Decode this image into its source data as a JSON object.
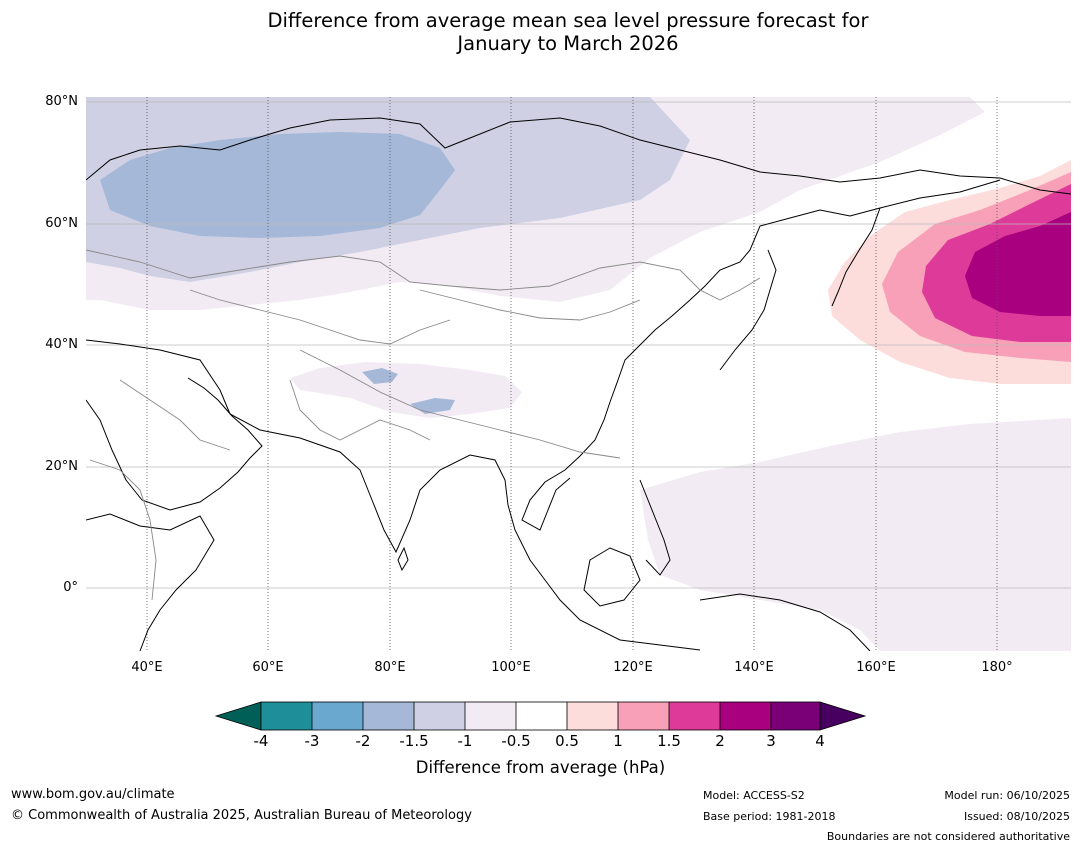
{
  "title_line1": "Difference from average mean sea level pressure forecast for",
  "title_line2": "January to March 2026",
  "map": {
    "lat_labels": [
      "80°N",
      "60°N",
      "40°N",
      "20°N",
      "0°"
    ],
    "lon_labels": [
      "40°E",
      "60°E",
      "80°E",
      "100°E",
      "120°E",
      "140°E",
      "160°E",
      "180°"
    ]
  },
  "colorbar": {
    "ticks": [
      "-4",
      "-3",
      "-2",
      "-1.5",
      "-1",
      "-0.5",
      "0.5",
      "1",
      "1.5",
      "2",
      "3",
      "4"
    ],
    "colors": {
      "extend_low": "#005f56",
      "lt_-3": "#1e8e99",
      "lt_-2": "#6aa8d0",
      "lt_-1.5": "#a5b8d8",
      "lt_-1": "#cfd0e4",
      "lt_-0.5": "#f3ebf4",
      "neutral": "#ffffff",
      "lt_1": "#fddcdc",
      "lt_1.5": "#f8a0b8",
      "lt_2": "#dd3a99",
      "lt_3": "#a8007f",
      "lt_4": "#7a0077",
      "extend_high": "#480060"
    },
    "label": "Difference from average (hPa)"
  },
  "footer": {
    "website": "www.bom.gov.au/climate",
    "copyright": "© Commonwealth of Australia 2025, Australian Bureau of Meteorology",
    "model": "Model: ACCESS-S2",
    "base_period": "Base period: 1981-2018",
    "model_run": "Model run: 06/10/2025",
    "issued": "Issued: 08/10/2025",
    "disclaimer": "Boundaries are not considered authoritative"
  }
}
